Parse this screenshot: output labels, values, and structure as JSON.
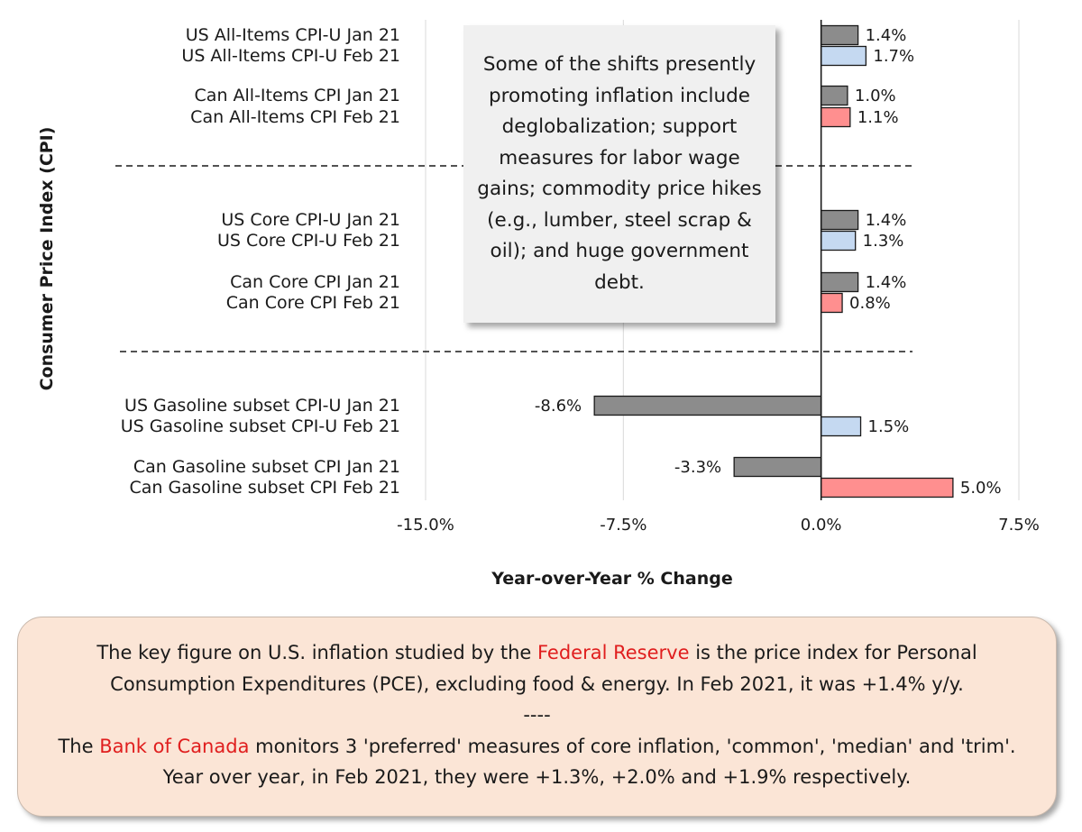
{
  "chart_data": {
    "type": "bar",
    "orientation": "horizontal",
    "xlabel": "Year-over-Year % Change",
    "ylabel": "Consumer Price Index (CPI)",
    "xlim": [
      -15,
      7.5
    ],
    "xticks": [
      "-15.0%",
      "-7.5%",
      "0.0%",
      "7.5%"
    ],
    "grid": true,
    "categories": [
      "US All-Items CPI-U Jan 21",
      "US All-Items CPI-U Feb 21",
      "Can All-Items CPI Jan 21",
      "Can All-Items CPI Feb 21",
      "US Core CPI-U Jan 21",
      "US Core CPI-U Feb 21",
      "Can Core CPI Jan 21",
      "Can Core CPI Feb 21",
      "US Gasoline subset CPI-U Jan 21",
      "US Gasoline subset CPI-U Feb 21",
      "Can Gasoline subset CPI Jan 21",
      "Can Gasoline subset CPI Feb 21"
    ],
    "values": [
      1.4,
      1.7,
      1.0,
      1.1,
      1.4,
      1.3,
      1.4,
      0.8,
      -8.6,
      1.5,
      -3.3,
      5.0
    ],
    "value_labels": [
      "1.4%",
      "1.7%",
      "1.0%",
      "1.1%",
      "1.4%",
      "1.3%",
      "1.4%",
      "0.8%",
      "-8.6%",
      "1.5%",
      "-3.3%",
      "5.0%"
    ],
    "colors": {
      "jan": "#8c8c8c",
      "us_feb": "#c5d9f1",
      "can_feb": "#ff8f8f",
      "bar_border": "#1a1a1a"
    }
  },
  "callout": {
    "text": "Some of the shifts presently promoting inflation include deglobalization; support measures for labor wage gains; commodity price hikes (e.g., lumber, steel scrap & oil); and huge government debt."
  },
  "note": {
    "p1_a": "The key figure on U.S. inflation studied by the ",
    "p1_link": "Federal Reserve",
    "p1_b": " is the price index for Personal Consumption Expenditures (PCE), excluding food & energy. In Feb 2021, it was +1.4% y/y.",
    "separator": "----",
    "p2_a": "The ",
    "p2_link": "Bank of Canada",
    "p2_b": " monitors 3 'preferred' measures of core inflation, 'common', 'median' and 'trim'. Year over year, in Feb 2021, they were +1.3%, +2.0% and +1.9% respectively.",
    "highlight_color": "#e01e1e"
  }
}
